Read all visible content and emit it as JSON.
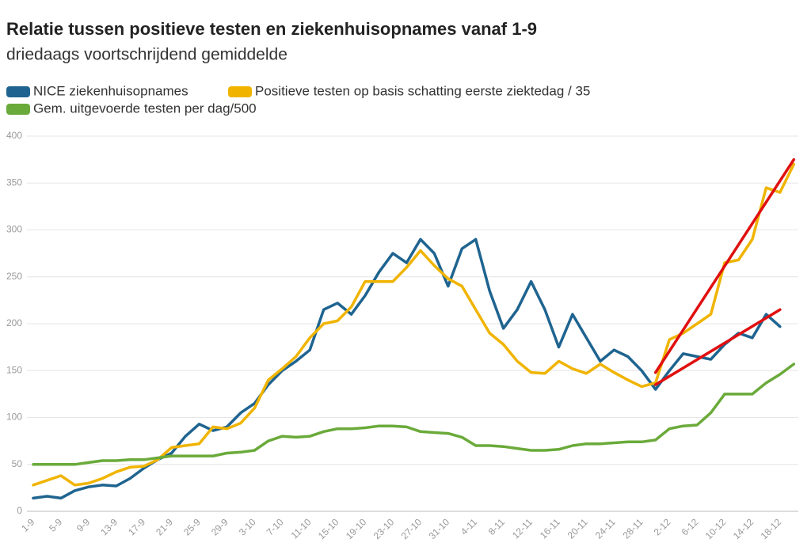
{
  "chart_data": {
    "type": "line",
    "title": "Relatie tussen positieve testen en ziekenhuisopnames vanaf 1-9",
    "subtitle": "driedaags voortschrijdend gemiddelde",
    "categories": [
      "1-9",
      null,
      "5-9",
      null,
      "9-9",
      null,
      "13-9",
      null,
      "17-9",
      null,
      "21-9",
      null,
      "25-9",
      null,
      "29-9",
      null,
      "3-10",
      null,
      "7-10",
      null,
      "11-10",
      null,
      "15-10",
      null,
      "19-10",
      null,
      "23-10",
      null,
      "27-10",
      null,
      "31-10",
      null,
      "4-11",
      null,
      "8-11",
      null,
      "12-11",
      null,
      "16-11",
      null,
      "20-11",
      null,
      "24-11",
      null,
      "28-11",
      null,
      "2-12",
      null,
      "6-12",
      null,
      "10-12",
      null,
      "14-12",
      null,
      "18-12",
      null
    ],
    "series": [
      {
        "name": "NICE ziekenhuisopnames",
        "color": "#1f6490",
        "values": [
          14,
          16,
          14,
          22,
          26,
          28,
          27,
          35,
          46,
          55,
          62,
          80,
          93,
          86,
          90,
          105,
          115,
          135,
          150,
          160,
          172,
          215,
          222,
          210,
          230,
          255,
          275,
          265,
          290,
          275,
          240,
          280,
          290,
          235,
          195,
          215,
          245,
          215,
          175,
          210,
          185,
          160,
          172,
          165,
          150,
          130,
          150,
          168,
          165,
          162,
          178,
          190,
          185,
          210,
          197,
          null
        ]
      },
      {
        "name": "Positieve testen op basis schatting eerste ziektedag / 35",
        "color": "#f0b400",
        "values": [
          28,
          33,
          38,
          28,
          30,
          35,
          42,
          47,
          48,
          55,
          68,
          70,
          72,
          90,
          88,
          94,
          110,
          140,
          152,
          165,
          185,
          200,
          203,
          218,
          245,
          245,
          245,
          260,
          278,
          262,
          248,
          240,
          215,
          190,
          178,
          160,
          148,
          147,
          160,
          152,
          147,
          157,
          148,
          140,
          133,
          137,
          183,
          190,
          200,
          210,
          265,
          268,
          290,
          345,
          340,
          370
        ]
      },
      {
        "name": "Gem. uitgevoerde testen per dag/500",
        "color": "#6aaa3a",
        "values": [
          50,
          50,
          50,
          50,
          52,
          54,
          54,
          55,
          55,
          57,
          59,
          59,
          59,
          59,
          62,
          63,
          65,
          75,
          80,
          79,
          80,
          85,
          88,
          88,
          89,
          91,
          91,
          90,
          85,
          84,
          83,
          79,
          70,
          70,
          69,
          67,
          65,
          65,
          66,
          70,
          72,
          72,
          73,
          74,
          74,
          76,
          88,
          91,
          92,
          105,
          125,
          125,
          125,
          137,
          146,
          157
        ]
      }
    ],
    "trend_lines": [
      {
        "color": "#e01010",
        "from": [
          45,
          148
        ],
        "to": [
          55,
          375
        ]
      },
      {
        "color": "#e01010",
        "from": [
          45,
          135
        ],
        "to": [
          54,
          215
        ]
      }
    ],
    "ylim": [
      0,
      400
    ],
    "yticks": [
      0,
      50,
      100,
      150,
      200,
      250,
      300,
      350,
      400
    ],
    "grid": true
  }
}
